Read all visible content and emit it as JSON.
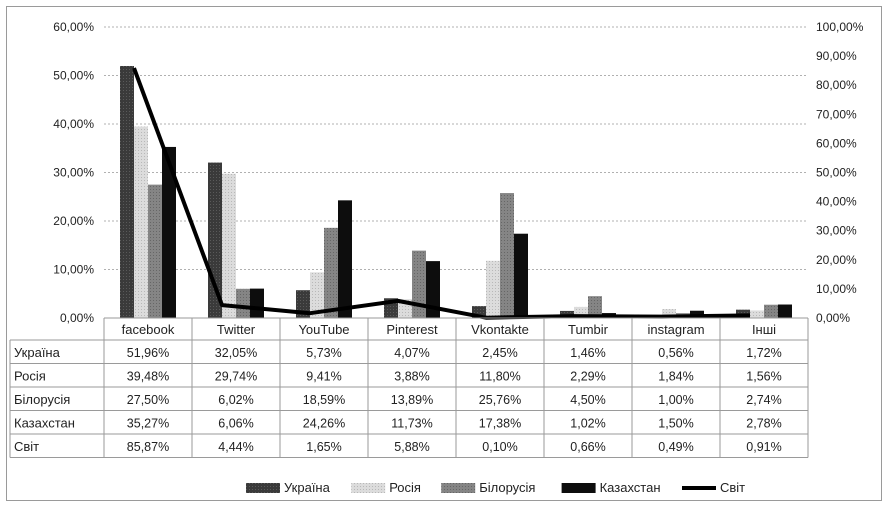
{
  "chart_data": {
    "type": "bar",
    "categories": [
      "facebook",
      "Twitter",
      "YouTube",
      "Pinterest",
      "Vkontakte",
      "Tumbir",
      "instagram",
      "Інші"
    ],
    "series": [
      {
        "name": "Україна",
        "values": [
          51.96,
          32.05,
          5.73,
          4.07,
          2.45,
          1.46,
          0.56,
          1.72
        ],
        "labels": [
          "51,96%",
          "32,05%",
          "5,73%",
          "4,07%",
          "2,45%",
          "1,46%",
          "0,56%",
          "1,72%"
        ],
        "color": "#3a3a3a",
        "style": "bar"
      },
      {
        "name": "Росія",
        "values": [
          39.48,
          29.74,
          9.41,
          3.88,
          11.8,
          2.29,
          1.84,
          1.56
        ],
        "labels": [
          "39,48%",
          "29,74%",
          "9,41%",
          "3,88%",
          "11,80%",
          "2,29%",
          "1,84%",
          "1,56%"
        ],
        "color": "#d2d2d2",
        "style": "bar"
      },
      {
        "name": "Білорусія",
        "values": [
          27.5,
          6.02,
          18.59,
          13.89,
          25.76,
          4.5,
          1.0,
          2.74
        ],
        "labels": [
          "27,50%",
          "6,02%",
          "18,59%",
          "13,89%",
          "25,76%",
          "4,50%",
          "1,00%",
          "2,74%"
        ],
        "color": "#7f7f7f",
        "style": "bar"
      },
      {
        "name": "Казахстан",
        "values": [
          35.27,
          6.06,
          24.26,
          11.73,
          17.38,
          1.02,
          1.5,
          2.78
        ],
        "labels": [
          "35,27%",
          "6,06%",
          "24,26%",
          "11,73%",
          "17,38%",
          "1,02%",
          "1,50%",
          "2,78%"
        ],
        "color": "#0d0d0d",
        "style": "bar"
      },
      {
        "name": "Світ",
        "values": [
          85.87,
          4.44,
          1.65,
          5.88,
          0.1,
          0.66,
          0.49,
          0.91
        ],
        "labels": [
          "85,87%",
          "4,44%",
          "1,65%",
          "5,88%",
          "0,10%",
          "0,66%",
          "0,49%",
          "0,91%"
        ],
        "color": "#000000",
        "style": "line",
        "axis": "secondary"
      }
    ],
    "y_axis": {
      "ylim": [
        0,
        60
      ],
      "ticks": [
        "0,00%",
        "10,00%",
        "20,00%",
        "30,00%",
        "40,00%",
        "50,00%",
        "60,00%"
      ]
    },
    "y2_axis": {
      "ylim": [
        0,
        100
      ],
      "ticks": [
        "0,00%",
        "10,00%",
        "20,00%",
        "30,00%",
        "40,00%",
        "50,00%",
        "60,00%",
        "70,00%",
        "80,00%",
        "90,00%",
        "100,00%"
      ]
    },
    "grid": true,
    "legend": "bottom",
    "data_table": true
  }
}
